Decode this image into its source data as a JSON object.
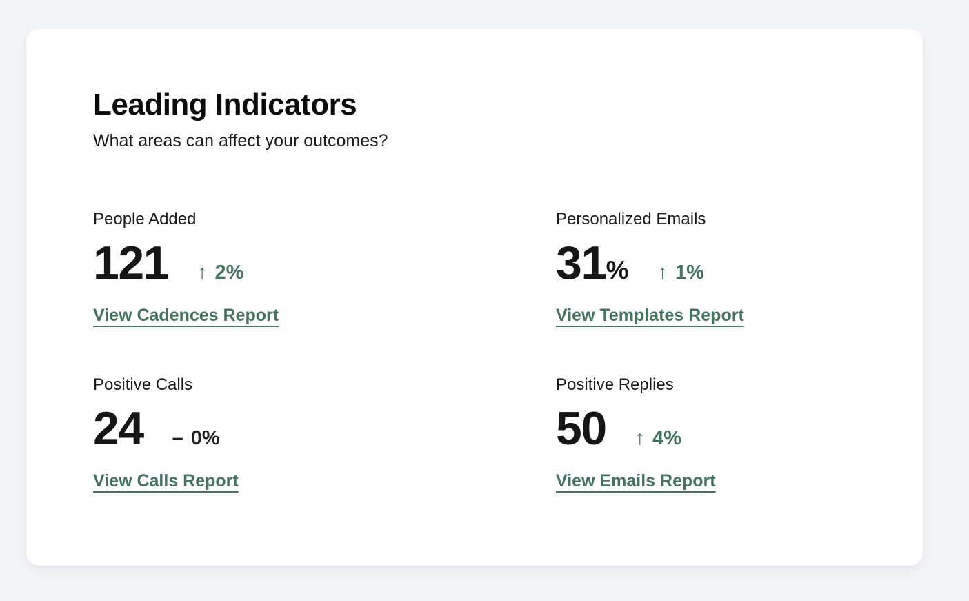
{
  "page": {
    "background_color": "#f2f4f8"
  },
  "card": {
    "title": "Leading Indicators",
    "subtitle": "What areas can affect your outcomes?",
    "colors": {
      "accent_green": "#46735f",
      "text_dark": "#161616",
      "trend_flat": "#1f1f1f",
      "card_background": "#ffffff"
    },
    "metrics": [
      {
        "label": "People Added",
        "value": "121",
        "value_suffix": "",
        "trend_direction": "up",
        "trend_icon": "↑",
        "trend_value": "2%",
        "link": "View Cadences Report"
      },
      {
        "label": "Personalized Emails",
        "value": "31",
        "value_suffix": "%",
        "trend_direction": "up",
        "trend_icon": "↑",
        "trend_value": "1%",
        "link": "View Templates Report"
      },
      {
        "label": "Positive Calls",
        "value": "24",
        "value_suffix": "",
        "trend_direction": "flat",
        "trend_icon": "–",
        "trend_value": "0%",
        "link": "View Calls Report"
      },
      {
        "label": "Positive Replies",
        "value": "50",
        "value_suffix": "",
        "trend_direction": "up",
        "trend_icon": "↑",
        "trend_value": "4%",
        "link": "View Emails Report"
      }
    ]
  }
}
